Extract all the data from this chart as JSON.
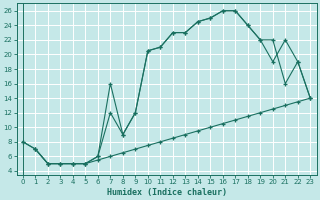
{
  "xlabel": "Humidex (Indice chaleur)",
  "bg_color": "#c5e8e8",
  "grid_color": "#b0d8d8",
  "line_color": "#1a7060",
  "xlim_min": -0.5,
  "xlim_max": 23.5,
  "ylim_min": 3.5,
  "ylim_max": 27.0,
  "xticks": [
    0,
    1,
    2,
    3,
    4,
    5,
    6,
    7,
    8,
    9,
    10,
    11,
    12,
    13,
    14,
    15,
    16,
    17,
    18,
    19,
    20,
    21,
    22,
    23
  ],
  "yticks": [
    4,
    6,
    8,
    10,
    12,
    14,
    16,
    18,
    20,
    22,
    24,
    26
  ],
  "line1_x": [
    0,
    1,
    2,
    3,
    4,
    5,
    6,
    7,
    8,
    9,
    10,
    11,
    12,
    13,
    14,
    15,
    16,
    17,
    18,
    19,
    20,
    21,
    22,
    23
  ],
  "line1_y": [
    8,
    7,
    5,
    5,
    5,
    5,
    6,
    16,
    9,
    12,
    20.5,
    21,
    23,
    23,
    24.5,
    25,
    26,
    26,
    24,
    22,
    19,
    22,
    19,
    14
  ],
  "line2_x": [
    0,
    1,
    2,
    3,
    4,
    5,
    6,
    7,
    8,
    9,
    10,
    11,
    12,
    13,
    14,
    15,
    16,
    17,
    18,
    19,
    20,
    21,
    22,
    23
  ],
  "line2_y": [
    8,
    7,
    5,
    5,
    5,
    5,
    6,
    12,
    9,
    12,
    20.5,
    21,
    23,
    23,
    24.5,
    25,
    26,
    26,
    24,
    22,
    22,
    16,
    19,
    14
  ],
  "line3_x": [
    1,
    2,
    3,
    4,
    5,
    6,
    7,
    8,
    9,
    10,
    11,
    12,
    13,
    14,
    15,
    16,
    17,
    18,
    19,
    20,
    21,
    22,
    23
  ],
  "line3_y": [
    7,
    5,
    5,
    5,
    5,
    5.5,
    6,
    6.5,
    7,
    7.5,
    8,
    8.5,
    9,
    9.5,
    10,
    10.5,
    11,
    11.5,
    12,
    12.5,
    13,
    13.5,
    14
  ],
  "xlabel_fontsize": 6,
  "tick_fontsize": 5
}
